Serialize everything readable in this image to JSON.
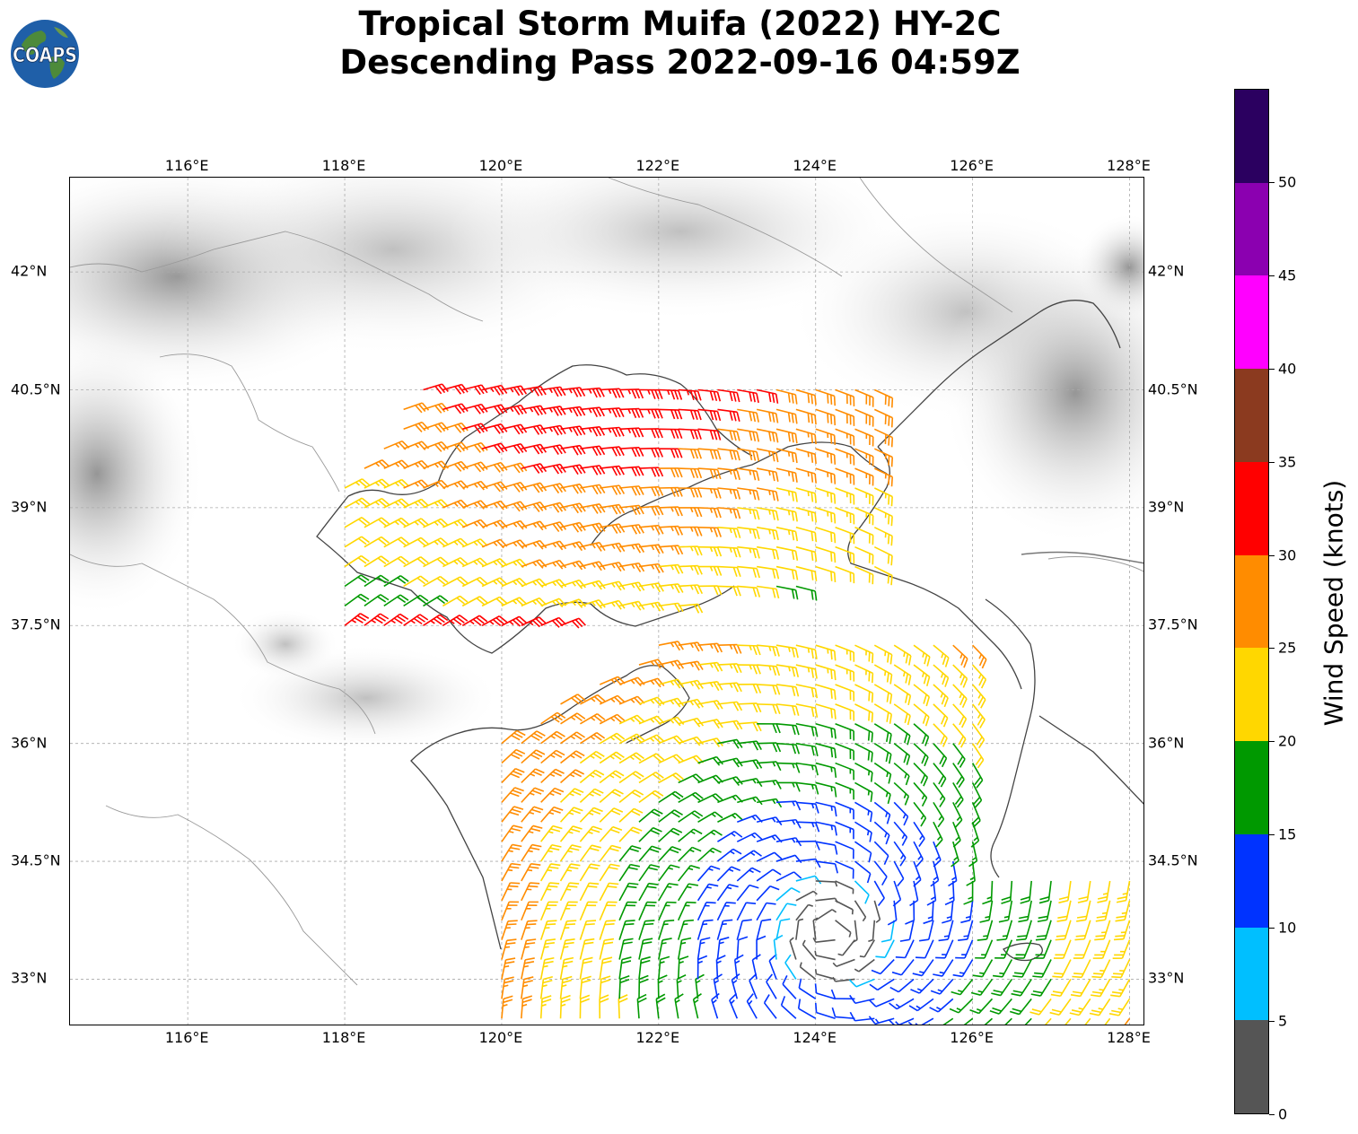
{
  "title": {
    "line1": "Tropical Storm Muifa (2022) HY-2C",
    "line2": "Descending Pass 2022-09-16 04:59Z"
  },
  "logo": {
    "text": "COAPS",
    "icon": "globe-icon",
    "colors": {
      "ocean": "#1f5fa8",
      "land": "#4d8a3a",
      "text": "#ffffff"
    }
  },
  "map": {
    "lon_range": [
      114.5,
      128.2
    ],
    "lat_range": [
      32.4,
      43.2
    ],
    "lon_ticks": [
      "116°E",
      "118°E",
      "120°E",
      "122°E",
      "124°E",
      "126°E",
      "128°E"
    ],
    "lat_ticks": [
      "42°N",
      "40.5°N",
      "39°N",
      "37.5°N",
      "36°N",
      "34.5°N",
      "33°N"
    ],
    "gridlines": true,
    "terrain": "grayscale"
  },
  "colorbar": {
    "label": "Wind Speed (knots)",
    "ticks": [
      "0",
      "5",
      "10",
      "15",
      "20",
      "25",
      "30",
      "35",
      "40",
      "45",
      "50"
    ],
    "bins": [
      {
        "min": 0,
        "max": 5,
        "color": "#555555"
      },
      {
        "min": 5,
        "max": 10,
        "color": "#00bfff"
      },
      {
        "min": 10,
        "max": 15,
        "color": "#0033ff"
      },
      {
        "min": 15,
        "max": 20,
        "color": "#009900"
      },
      {
        "min": 20,
        "max": 25,
        "color": "#ffd700"
      },
      {
        "min": 25,
        "max": 30,
        "color": "#ff8c00"
      },
      {
        "min": 30,
        "max": 35,
        "color": "#ff0000"
      },
      {
        "min": 35,
        "max": 40,
        "color": "#8b3a1f"
      },
      {
        "min": 40,
        "max": 45,
        "color": "#ff00ff"
      },
      {
        "min": 45,
        "max": 50,
        "color": "#8b00b0"
      },
      {
        "min": 50,
        "max": 55,
        "color": "#2b0060"
      }
    ]
  }
}
